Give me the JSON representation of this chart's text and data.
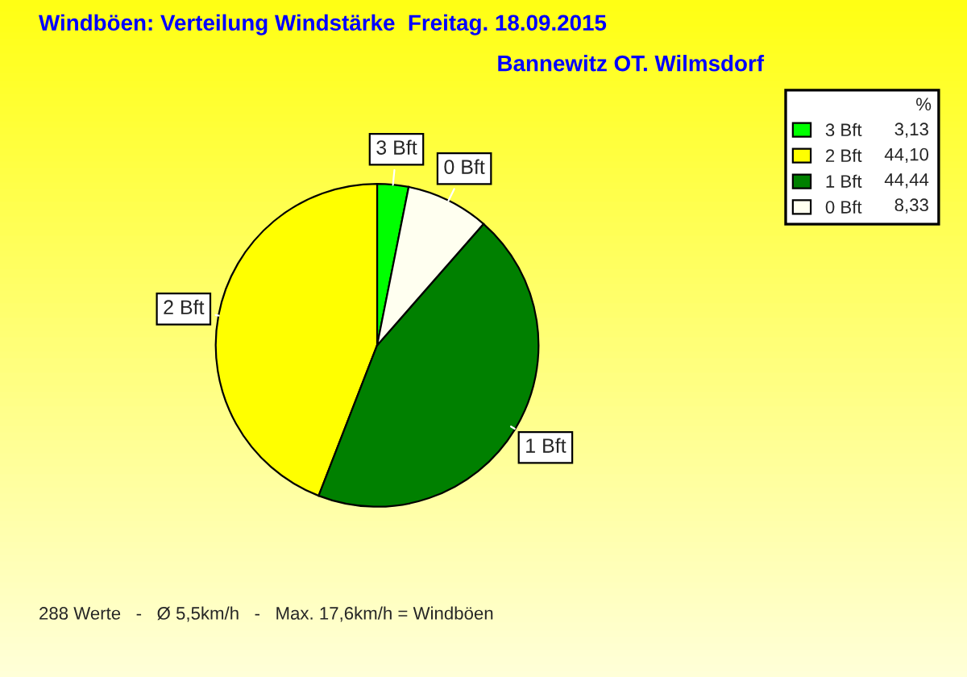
{
  "chart_data": {
    "type": "pie",
    "title": "Windböen: Verteilung Windstärke  Freitag. 18.09.2015",
    "subtitle": "Bannewitz OT. Wilmsdorf",
    "legend_title": "%",
    "categories": [
      "3 Bft",
      "2 Bft",
      "1 Bft",
      "0 Bft"
    ],
    "values": [
      3.13,
      44.1,
      44.44,
      8.33
    ],
    "value_labels": [
      "3,13",
      "44,10",
      "44,44",
      "8,33"
    ],
    "colors": [
      "#00ff00",
      "#ffff00",
      "#008000",
      "#fffff0"
    ],
    "legend": "top right",
    "annotations": [
      "288 Werte   -   Ø 5,5km/h   -   Max. 17,6km/h = Windböen"
    ]
  }
}
